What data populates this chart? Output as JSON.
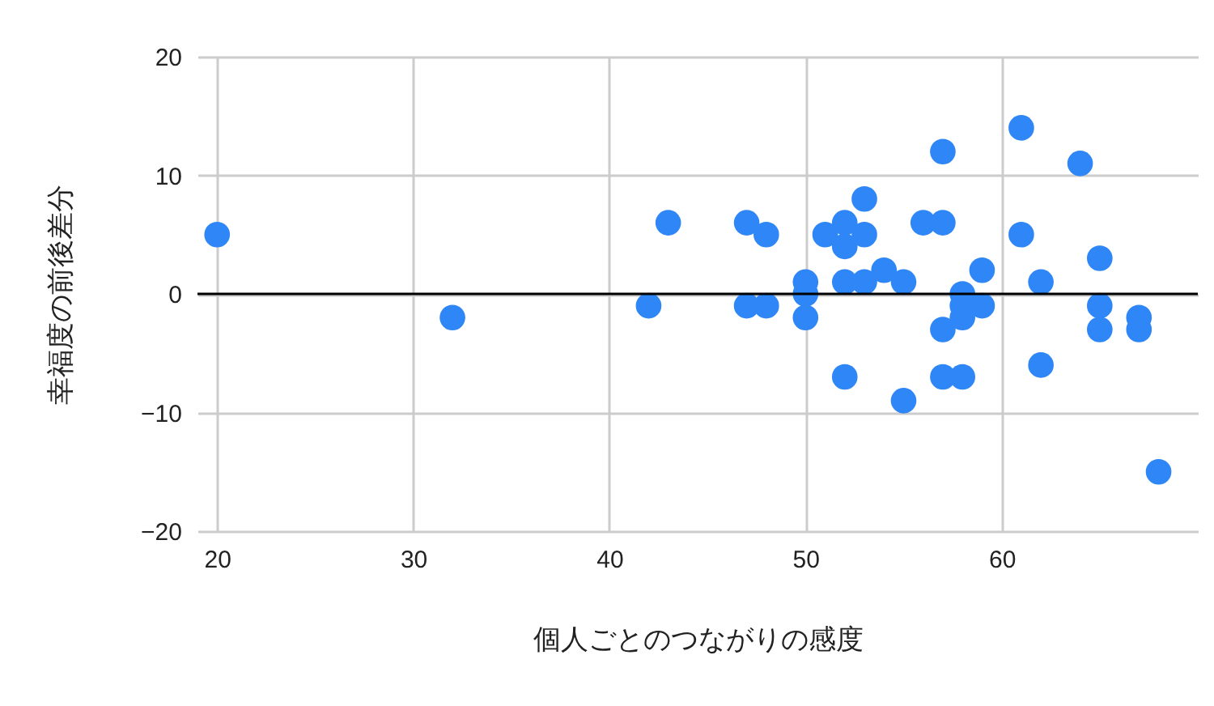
{
  "chart_data": {
    "type": "scatter",
    "xlabel": "個人ごとのつながりの感度",
    "ylabel": "幸福度の前後差分",
    "x": [
      20,
      32,
      42,
      43,
      47,
      47,
      48,
      48,
      50,
      50,
      50,
      51,
      52,
      52,
      52,
      52,
      53,
      53,
      53,
      54,
      55,
      55,
      56,
      57,
      57,
      57,
      57,
      58,
      58,
      58,
      58,
      59,
      59,
      61,
      61,
      62,
      62,
      64,
      65,
      65,
      65,
      67,
      67,
      68
    ],
    "series": [
      {
        "color": "#2f86f6",
        "values": [
          5,
          -2,
          -1,
          6,
          6,
          -1,
          5,
          -1,
          1,
          0,
          -2,
          5,
          6,
          4,
          1,
          -7,
          5,
          8,
          1,
          2,
          1,
          -9,
          6,
          12,
          6,
          -3,
          -7,
          0,
          -1,
          -2,
          -7,
          2,
          -1,
          14,
          5,
          1,
          -6,
          11,
          3,
          -1,
          -3,
          -2,
          -3,
          -15
        ]
      }
    ],
    "xlim": [
      19,
      70
    ],
    "xticks": [
      20,
      30,
      40,
      50,
      60
    ],
    "ylim": [
      -20,
      20
    ],
    "yticks": [
      -20,
      -10,
      0,
      10,
      20
    ],
    "grid": true,
    "marker": "circle",
    "ref_lines": [
      {
        "axis": "y",
        "value": 0,
        "color": "#000000"
      }
    ]
  }
}
